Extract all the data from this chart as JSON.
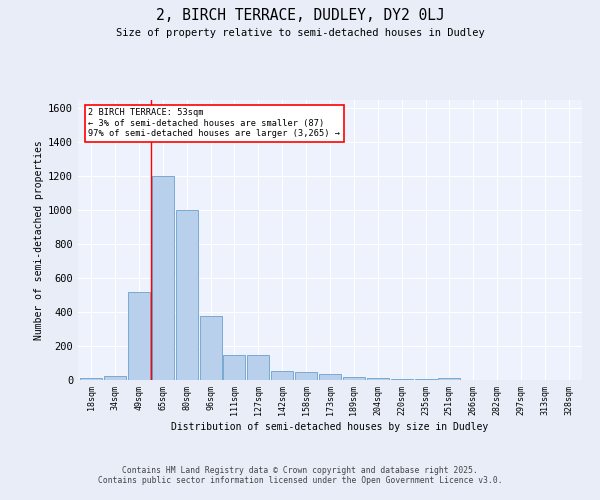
{
  "title1": "2, BIRCH TERRACE, DUDLEY, DY2 0LJ",
  "title2": "Size of property relative to semi-detached houses in Dudley",
  "xlabel": "Distribution of semi-detached houses by size in Dudley",
  "ylabel": "Number of semi-detached properties",
  "categories": [
    "18sqm",
    "34sqm",
    "49sqm",
    "65sqm",
    "80sqm",
    "96sqm",
    "111sqm",
    "127sqm",
    "142sqm",
    "158sqm",
    "173sqm",
    "189sqm",
    "204sqm",
    "220sqm",
    "235sqm",
    "251sqm",
    "266sqm",
    "282sqm",
    "297sqm",
    "313sqm",
    "328sqm"
  ],
  "values": [
    10,
    25,
    520,
    1200,
    1000,
    375,
    150,
    150,
    55,
    45,
    35,
    20,
    10,
    5,
    5,
    10,
    0,
    0,
    0,
    0,
    0
  ],
  "bar_color": "#b8d0eb",
  "bar_edge_color": "#6aa0cc",
  "vline_x": 2.5,
  "annotation_text": "2 BIRCH TERRACE: 53sqm\n← 3% of semi-detached houses are smaller (87)\n97% of semi-detached houses are larger (3,265) →",
  "ylim": [
    0,
    1650
  ],
  "yticks": [
    0,
    200,
    400,
    600,
    800,
    1000,
    1200,
    1400,
    1600
  ],
  "footer1": "Contains HM Land Registry data © Crown copyright and database right 2025.",
  "footer2": "Contains public sector information licensed under the Open Government Licence v3.0.",
  "bg_color": "#e8edf8",
  "plot_bg_color": "#eef2fc"
}
